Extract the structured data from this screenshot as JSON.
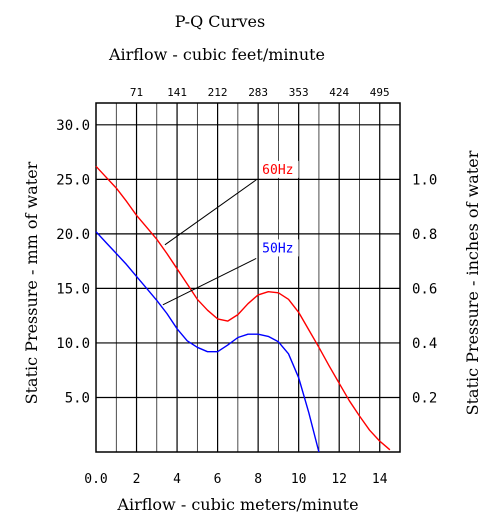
{
  "chart_data": {
    "type": "line",
    "title": "P-Q Curves",
    "top_axis": {
      "label": "Airflow - cubic feet/minute",
      "ticks": [
        "71",
        "141",
        "212",
        "283",
        "353",
        "424",
        "495"
      ],
      "tick_positions": [
        2,
        4,
        6,
        8,
        10,
        12,
        14
      ]
    },
    "xlabel": "Airflow - cubic meters/minute",
    "ylabel": "Static Pressure - mm of water",
    "right_axis": {
      "label": "Static Pressure - inches of water",
      "ticks": [
        "1.0",
        "0.8",
        "0.6",
        "0.4",
        "0.2"
      ],
      "tick_positions": [
        25,
        20,
        15,
        10,
        5
      ]
    },
    "x_ticks": [
      "0.0",
      "2",
      "4",
      "6",
      "8",
      "10",
      "12",
      "14"
    ],
    "x_tick_values": [
      0,
      2,
      4,
      6,
      8,
      10,
      12,
      14
    ],
    "y_ticks": [
      "30.0",
      "25.0",
      "20.0",
      "15.0",
      "10.0",
      "5.0"
    ],
    "y_tick_values": [
      30,
      25,
      20,
      15,
      10,
      5
    ],
    "xlim": [
      0,
      15
    ],
    "ylim": [
      0,
      32
    ],
    "grid": true,
    "series": [
      {
        "name": "60Hz",
        "color": "#ff0000",
        "x": [
          0,
          0.5,
          1,
          1.5,
          2,
          2.5,
          3,
          3.5,
          4,
          4.5,
          5,
          5.5,
          6,
          6.5,
          7,
          7.5,
          8,
          8.5,
          9,
          9.5,
          10,
          10.5,
          11,
          11.5,
          12,
          12.5,
          13,
          13.5,
          14,
          14.5
        ],
        "values": [
          26.2,
          25.2,
          24.2,
          23.0,
          21.7,
          20.6,
          19.5,
          18.2,
          16.8,
          15.4,
          14.0,
          13.0,
          12.2,
          12.0,
          12.6,
          13.6,
          14.4,
          14.7,
          14.6,
          14.0,
          12.8,
          11.2,
          9.6,
          7.9,
          6.3,
          4.7,
          3.3,
          2.0,
          1.0,
          0.2
        ]
      },
      {
        "name": "50Hz",
        "color": "#0000ff",
        "x": [
          0,
          0.5,
          1,
          1.5,
          2,
          2.5,
          3,
          3.5,
          4,
          4.5,
          5,
          5.5,
          6,
          6.5,
          7,
          7.5,
          8,
          8.5,
          9,
          9.5,
          10,
          10.5,
          11
        ],
        "values": [
          20.2,
          19.2,
          18.2,
          17.2,
          16.1,
          15.0,
          13.9,
          12.7,
          11.3,
          10.2,
          9.6,
          9.2,
          9.2,
          9.8,
          10.5,
          10.8,
          10.8,
          10.6,
          10.1,
          9.0,
          6.8,
          3.6,
          0.0
        ]
      }
    ],
    "annotations": [
      {
        "text": "60Hz",
        "color": "#ff0000",
        "x": 8.2,
        "y": 25.5,
        "pointer_to": [
          3.4,
          19.0
        ]
      },
      {
        "text": "50Hz",
        "color": "#0000ff",
        "x": 8.2,
        "y": 18.3,
        "pointer_to": [
          3.3,
          13.5
        ]
      }
    ]
  }
}
